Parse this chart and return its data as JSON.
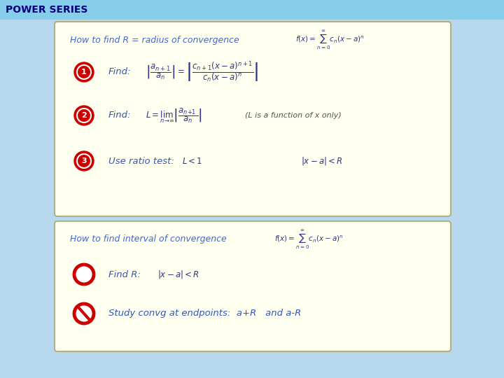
{
  "title": "POWER SERIES",
  "title_bg": "#87CEEB",
  "title_color": "#000080",
  "title_fontsize": 10,
  "bg_color": "#ffffff",
  "outer_bg": "#add8e6",
  "box1_bg": "#fffff0",
  "box1_border": "#b0b080",
  "box1_title": "How to find R = radius of convergence",
  "box1_title_color": "#4466cc",
  "box1_step1_text": "Find:",
  "box1_step2_text": "Find:",
  "box1_step2_note": "(L is a function of x only)",
  "box1_step3_text": "Use ratio test:",
  "box1_step3_formula1": "$L < 1$",
  "box1_step3_formula2": "$|x-a| < R$",
  "box2_bg": "#fffff0",
  "box2_border": "#b0b080",
  "box2_title": "How to find interval of convergence",
  "box2_title_color": "#4466cc",
  "box2_step1_text": "Find R:",
  "box2_step1_formula": "$|x-a| < R$",
  "box2_step2_text": "Study convg at endpoints:  a+R   and a-R",
  "text_color": "#3355bb",
  "circle_color": "#cc0000",
  "note_color": "#555555",
  "formula_color": "#333388"
}
